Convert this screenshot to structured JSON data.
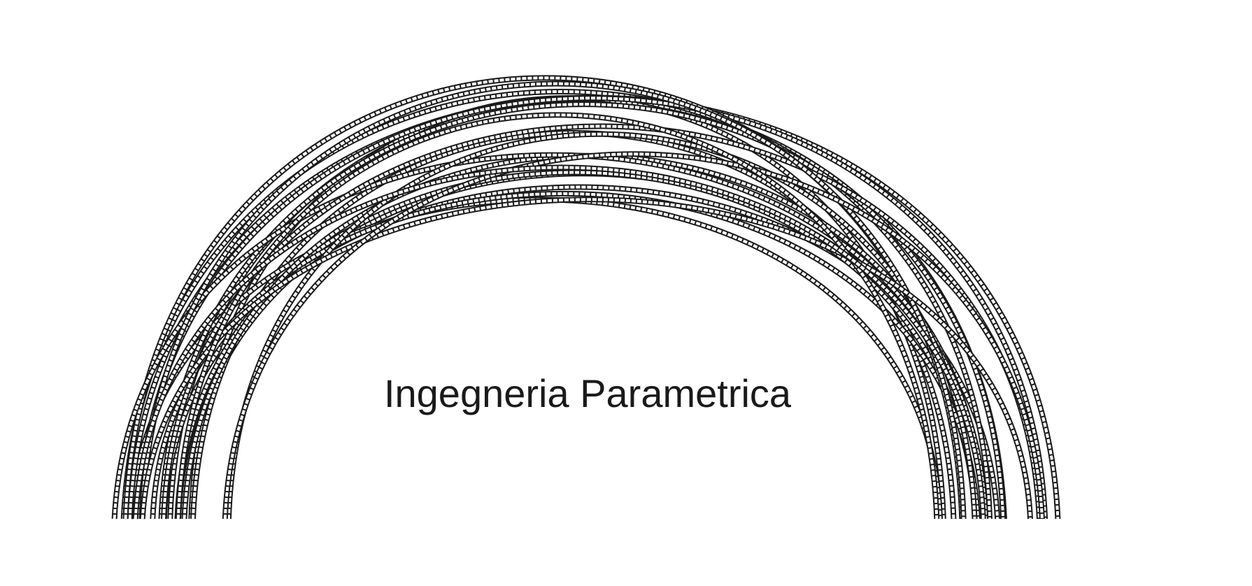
{
  "caption": "Ingegneria Parametrica",
  "colors": {
    "background": "#ffffff",
    "stroke": "#1a1a1a",
    "band_hatch": "#ffffff"
  },
  "illustration": {
    "subject": "parametric arch made of intersecting curved ribs",
    "rib_count": 22
  }
}
